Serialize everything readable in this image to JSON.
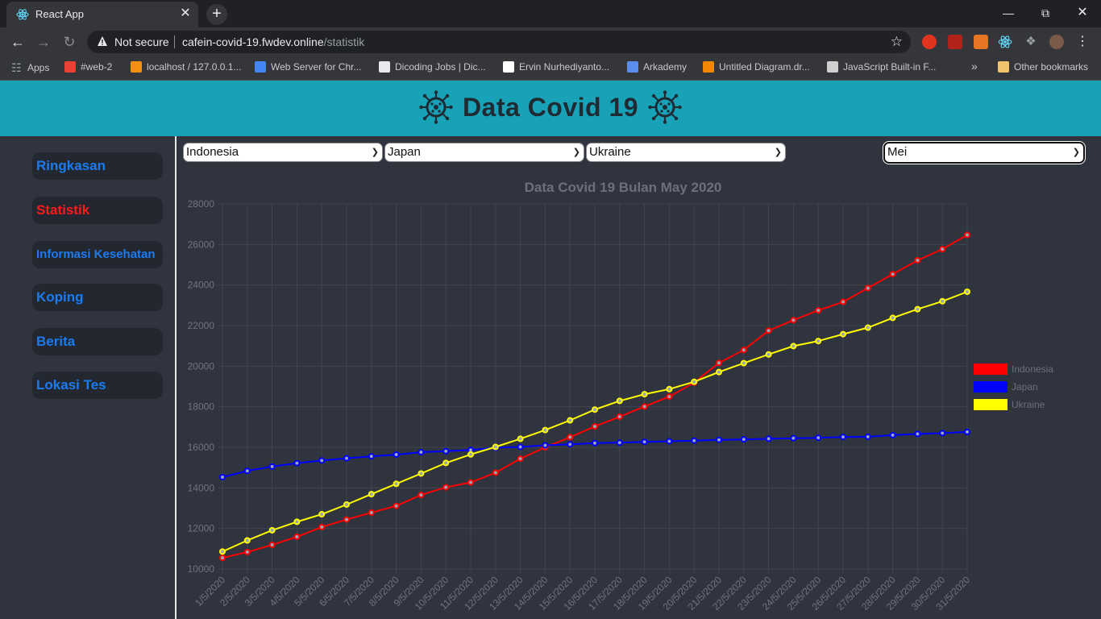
{
  "browser": {
    "tab_title": "React App",
    "tab_close": "✕",
    "new_tab": "+",
    "url_security": "Not secure",
    "url_host": "cafein-covid-19.fwdev.online",
    "url_path": "/statistik",
    "bookmarks": [
      {
        "label": "Apps",
        "icon_color": "#9aa0a6"
      },
      {
        "label": "#web-2",
        "icon_color": "#e94235"
      },
      {
        "label": "localhost / 127.0.0.1...",
        "icon_color": "#f29111"
      },
      {
        "label": "Web Server for Chr...",
        "icon_color": "#4285f4"
      },
      {
        "label": "Dicoding Jobs | Dic...",
        "icon_color": "#e8eaed"
      },
      {
        "label": "Ervin Nurhediyanto...",
        "icon_color": "#ffffff"
      },
      {
        "label": "Arkademy",
        "icon_color": "#5b8def"
      },
      {
        "label": "Untitled Diagram.dr...",
        "icon_color": "#f08705"
      },
      {
        "label": "JavaScript Built-in F...",
        "icon_color": "#cfcfcf"
      }
    ],
    "bookmarks_overflow": "»",
    "other_bookmarks": "Other bookmarks"
  },
  "header": {
    "title": "Data Covid 19"
  },
  "sidebar": {
    "items": [
      {
        "label": "Ringkasan"
      },
      {
        "label": "Statistik"
      },
      {
        "label": "Informasi Kesehatan"
      },
      {
        "label": "Koping"
      },
      {
        "label": "Berita"
      },
      {
        "label": "Lokasi Tes"
      }
    ]
  },
  "filters": {
    "country1": "Indonesia",
    "country2": "Japan",
    "country3": "Ukraine",
    "month": "Mei"
  },
  "chart_data": {
    "type": "line",
    "title": "Data Covid 19 Bulan May 2020",
    "categories": [
      "1/5/2020",
      "2/5/2020",
      "3/5/2020",
      "4/5/2020",
      "5/5/2020",
      "6/5/2020",
      "7/5/2020",
      "8/5/2020",
      "9/5/2020",
      "10/5/2020",
      "11/5/2020",
      "12/5/2020",
      "13/5/2020",
      "14/5/2020",
      "15/5/2020",
      "16/5/2020",
      "17/5/2020",
      "18/5/2020",
      "19/5/2020",
      "20/5/2020",
      "21/5/2020",
      "22/5/2020",
      "23/5/2020",
      "24/5/2020",
      "25/5/2020",
      "26/5/2020",
      "27/5/2020",
      "28/5/2020",
      "29/5/2020",
      "30/5/2020",
      "31/5/2020"
    ],
    "ylim": [
      10000,
      28000
    ],
    "yticks": [
      10000,
      12000,
      14000,
      16000,
      18000,
      20000,
      22000,
      24000,
      26000,
      28000
    ],
    "grid": true,
    "legend_position": "right",
    "series": [
      {
        "name": "Indonesia",
        "color": "#ff0000",
        "values": [
          10550,
          10840,
          11190,
          11590,
          12070,
          12440,
          12780,
          13110,
          13650,
          14030,
          14270,
          14750,
          15440,
          16000,
          16500,
          17030,
          17510,
          18010,
          18500,
          19190,
          20160,
          20800,
          21750,
          22270,
          22750,
          23170,
          23850,
          24540,
          25220,
          25770,
          26470
        ]
      },
      {
        "name": "Japan",
        "color": "#0000ff",
        "values": [
          14530,
          14840,
          15050,
          15220,
          15350,
          15460,
          15560,
          15640,
          15760,
          15810,
          15870,
          15980,
          16020,
          16100,
          16150,
          16210,
          16230,
          16270,
          16300,
          16330,
          16370,
          16390,
          16420,
          16450,
          16470,
          16510,
          16520,
          16600,
          16660,
          16700,
          16760
        ]
      },
      {
        "name": "Ukraine",
        "color": "#ffff00",
        "values": [
          10860,
          11410,
          11910,
          12330,
          12700,
          13180,
          13690,
          14200,
          14710,
          15230,
          15650,
          16020,
          16420,
          16850,
          17330,
          17860,
          18290,
          18620,
          18870,
          19230,
          19710,
          20150,
          20580,
          20990,
          21240,
          21580,
          21900,
          22380,
          22810,
          23200,
          23670
        ]
      }
    ]
  }
}
